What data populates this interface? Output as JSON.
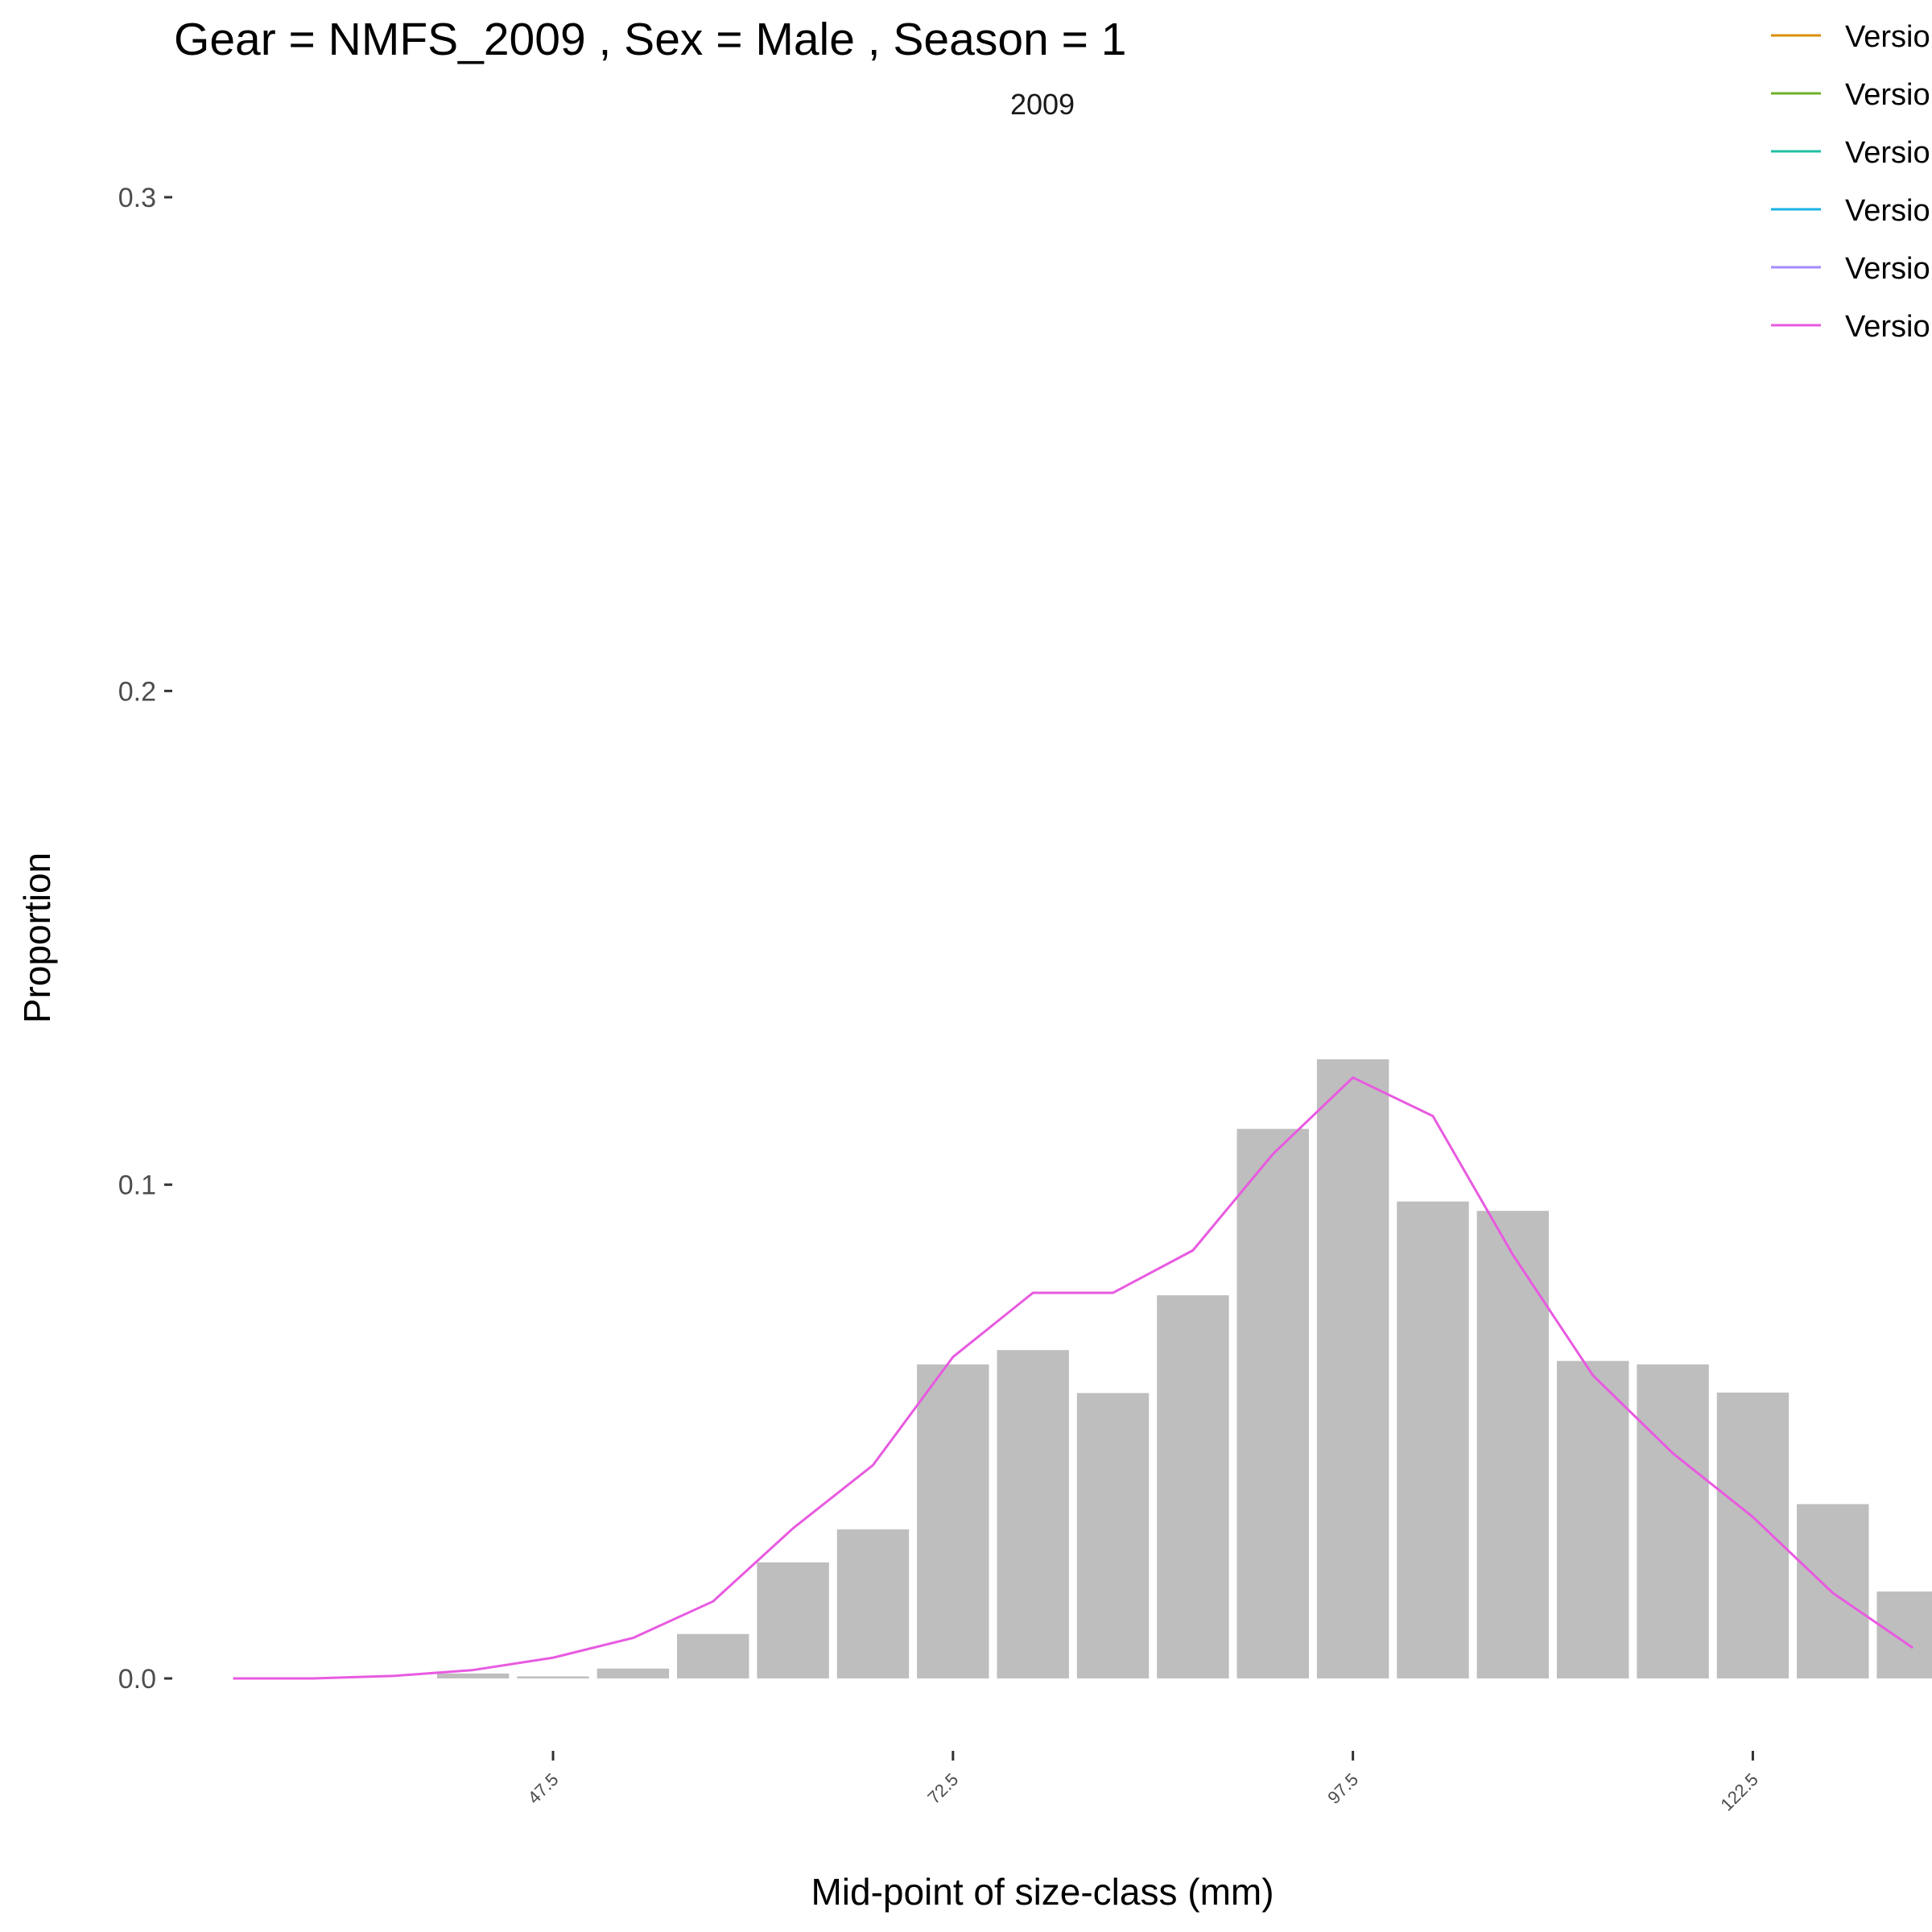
{
  "chart_data": {
    "type": "bar",
    "title": "Gear = NMFS_2009 , Sex = Male , Season = 1",
    "subtitle": "2009",
    "xlabel": "Mid-point of size-class (mm)",
    "ylabel": "Proportion",
    "xlim": [
      24.0,
      133.7
    ],
    "ylim": [
      0,
      0.3
    ],
    "y_ticks": [
      {
        "value": 0.0,
        "label": "0.0"
      },
      {
        "value": 0.1,
        "label": "0.1"
      },
      {
        "value": 0.2,
        "label": "0.2"
      },
      {
        "value": 0.3,
        "label": "0.3"
      }
    ],
    "x_ticks": [
      {
        "value": 47.5,
        "label": "47.5"
      },
      {
        "value": 72.5,
        "label": "72.5"
      },
      {
        "value": 97.5,
        "label": "97.5"
      },
      {
        "value": 122.5,
        "label": "122.5"
      }
    ],
    "bar_color": "#bebebe",
    "bars": {
      "x": [
        37.5,
        42.5,
        47.5,
        52.5,
        57.5,
        62.5,
        67.5,
        72.5,
        77.5,
        82.5,
        87.5,
        92.5,
        97.5,
        102.5,
        107.5,
        112.5,
        117.5,
        122.5,
        127.5,
        132.5
      ],
      "values": [
        0.0,
        0.001,
        0.0004,
        0.002,
        0.009,
        0.0235,
        0.0302,
        0.0636,
        0.0665,
        0.0578,
        0.0776,
        0.1113,
        0.1254,
        0.0966,
        0.0947,
        0.0643,
        0.0636,
        0.0579,
        0.0353,
        0.0176
      ],
      "width": 4.5
    },
    "series": [
      {
        "color": "#e85ae0",
        "x": [
          27.5,
          32.5,
          37.5,
          42.5,
          47.5,
          52.5,
          57.5,
          62.5,
          67.5,
          72.5,
          77.5,
          82.5,
          87.5,
          92.5,
          97.5,
          102.5,
          107.5,
          112.5,
          117.5,
          122.5,
          127.5,
          132.5
        ],
        "values": [
          0.0,
          0.0,
          0.0005,
          0.0017,
          0.0042,
          0.0082,
          0.0156,
          0.0304,
          0.0432,
          0.0651,
          0.0781,
          0.0781,
          0.0867,
          0.1062,
          0.1217,
          0.1139,
          0.0858,
          0.0614,
          0.0456,
          0.0327,
          0.0173,
          0.0062
        ]
      }
    ],
    "legend": {
      "position": "top-right",
      "items": [
        {
          "label": "Versio",
          "color": "#d89000"
        },
        {
          "label": "Versio",
          "color": "#6fb12a"
        },
        {
          "label": "Versio",
          "color": "#1fbfa0"
        },
        {
          "label": "Versio",
          "color": "#1ab3e6"
        },
        {
          "label": "Versio",
          "color": "#a58aff"
        },
        {
          "label": "Versio",
          "color": "#e85ae0"
        }
      ]
    },
    "grid": false
  }
}
